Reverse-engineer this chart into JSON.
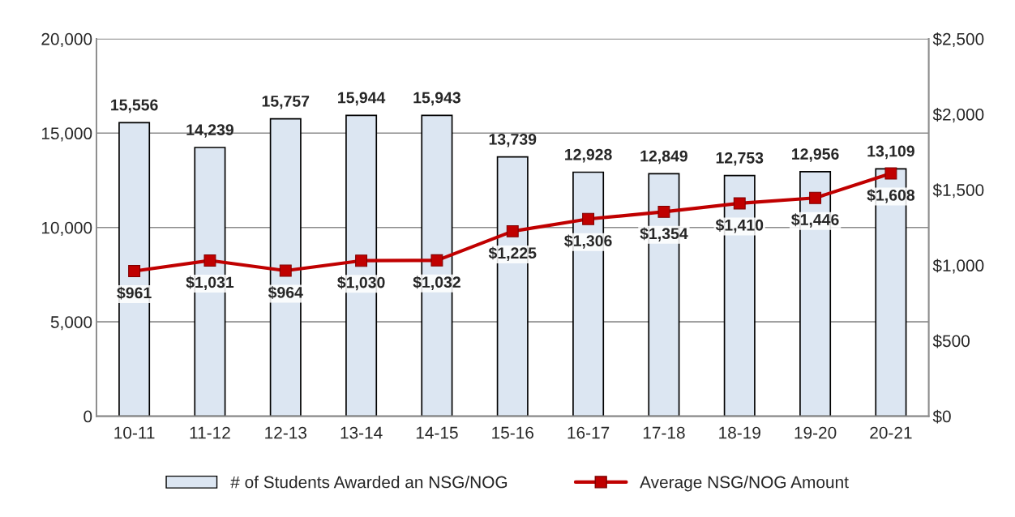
{
  "chart_data": {
    "type": "bar",
    "categories": [
      "10-11",
      "11-12",
      "12-13",
      "13-14",
      "14-15",
      "15-16",
      "16-17",
      "17-18",
      "18-19",
      "19-20",
      "20-21"
    ],
    "series": [
      {
        "name": "# of Students Awarded an NSG/NOG",
        "color": "#dce6f2",
        "values": [
          15556,
          14239,
          15757,
          15944,
          15943,
          13739,
          12928,
          12849,
          12753,
          12956,
          13109
        ],
        "value_labels": [
          "15,556",
          "14,239",
          "15,757",
          "15,944",
          "15,943",
          "13,739",
          "12,928",
          "12,849",
          "12,753",
          "12,956",
          "13,109"
        ]
      },
      {
        "name": "Average NSG/NOG Amount",
        "type": "line",
        "axis": "y2",
        "color": "#c00000",
        "marker": "square",
        "values": [
          961,
          1031,
          964,
          1030,
          1032,
          1225,
          1306,
          1354,
          1410,
          1446,
          1608
        ],
        "value_labels": [
          "$961",
          "$1,031",
          "$964",
          "$1,030",
          "$1,032",
          "$1,225",
          "$1,306",
          "$1,354",
          "$1,410",
          "$1,446",
          "$1,608"
        ]
      }
    ],
    "ylim": [
      0,
      20000
    ],
    "yticks": [
      {
        "value": 0,
        "label": "0"
      },
      {
        "value": 5000,
        "label": "5,000"
      },
      {
        "value": 10000,
        "label": "10,000"
      },
      {
        "value": 15000,
        "label": "15,000"
      },
      {
        "value": 20000,
        "label": "20,000"
      }
    ],
    "y2lim": [
      0,
      2500
    ],
    "y2ticks": [
      {
        "value": 0,
        "label": "$0"
      },
      {
        "value": 500,
        "label": "$500"
      },
      {
        "value": 1000,
        "label": "$1,000"
      },
      {
        "value": 1500,
        "label": "$1,500"
      },
      {
        "value": 2000,
        "label": "$2,000"
      },
      {
        "value": 2500,
        "label": "$2,500"
      }
    ],
    "grid": "y",
    "legend": "bottom"
  }
}
